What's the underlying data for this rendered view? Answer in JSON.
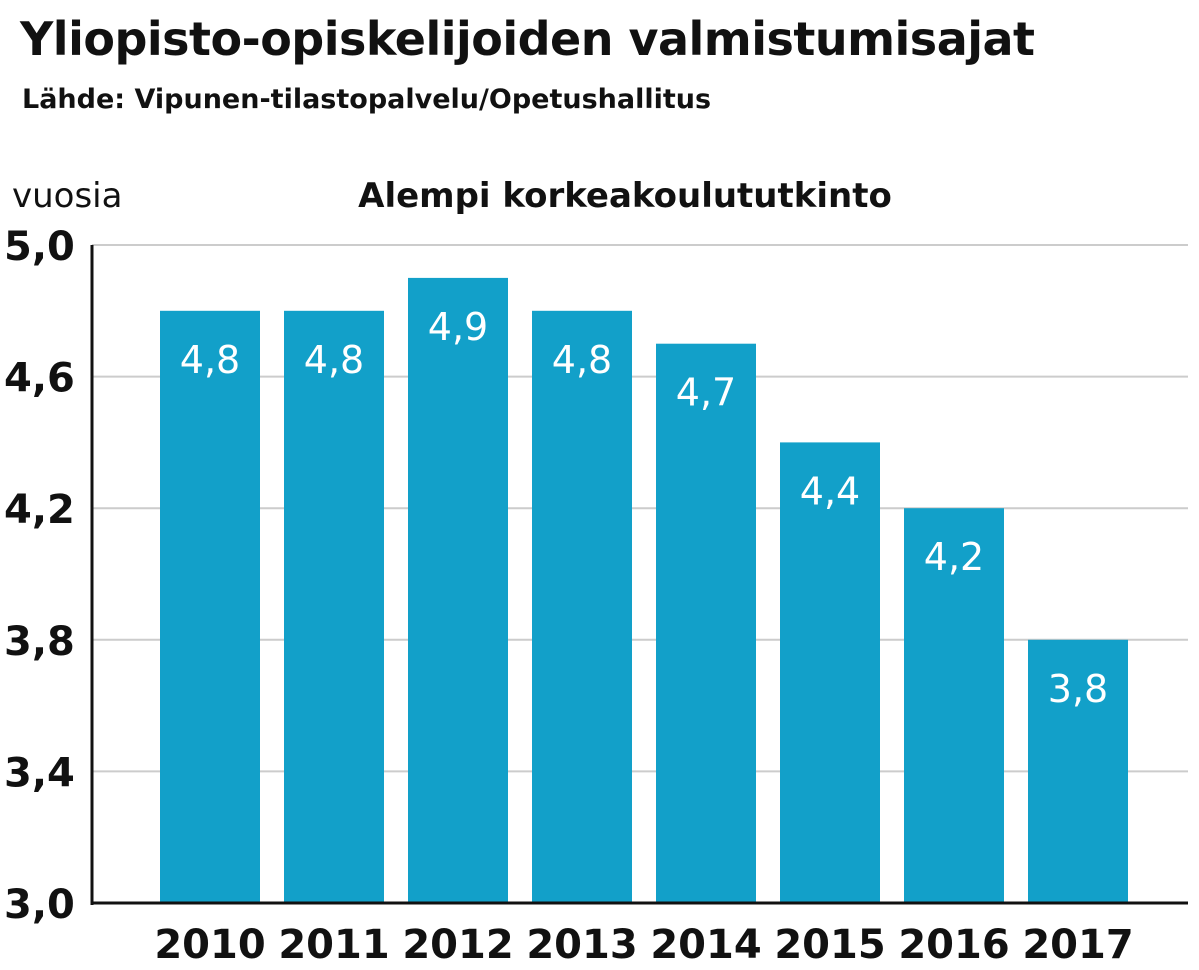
{
  "header": {
    "title": "Yliopisto-opiskelijoiden valmistumisajat",
    "source": "Lähde: Vipunen-tilastopalvelu/Opetushallitus"
  },
  "colors": {
    "bar": "#12a0c9",
    "grid": "#cccccc",
    "axis": "#111111",
    "label": "#ffffff"
  },
  "chart_data": {
    "type": "bar",
    "title": "Alempi korkeakoulututkinto",
    "ylabel": "vuosia",
    "xlabel": "",
    "categories": [
      "2010",
      "2011",
      "2012",
      "2013",
      "2014",
      "2015",
      "2016",
      "2017"
    ],
    "values": [
      4.8,
      4.8,
      4.9,
      4.8,
      4.7,
      4.4,
      4.2,
      3.8
    ],
    "value_labels": [
      "4,8",
      "4,8",
      "4,9",
      "4,8",
      "4,7",
      "4,4",
      "4,2",
      "3,8"
    ],
    "ylim": [
      3.0,
      5.0
    ],
    "yticks": [
      3.0,
      3.4,
      3.8,
      4.2,
      4.6,
      5.0
    ],
    "ytick_labels": [
      "3,0",
      "3,4",
      "3,8",
      "4,2",
      "4,6",
      "5,0"
    ],
    "grid": true,
    "legend": "none"
  }
}
